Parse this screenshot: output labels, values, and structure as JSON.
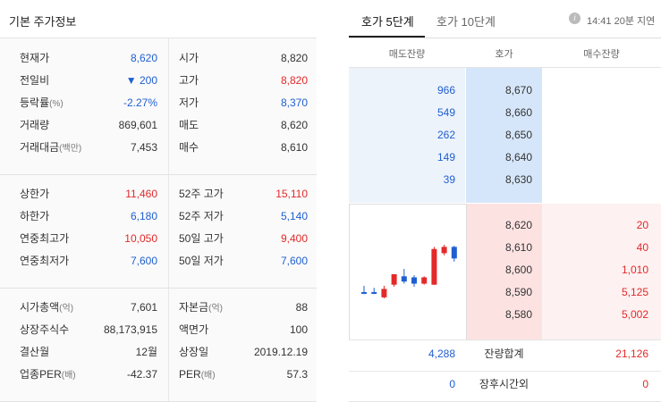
{
  "basic": {
    "title": "기본 주가정보",
    "sections": [
      [
        {
          "l1": "현재가",
          "u1": "",
          "v1": "8,620",
          "c1": "blue",
          "l2": "시가",
          "u2": "",
          "v2": "8,820",
          "c2": "dark"
        },
        {
          "l1": "전일비",
          "u1": "",
          "v1": "▼ 200",
          "c1": "blue",
          "l2": "고가",
          "u2": "",
          "v2": "8,820",
          "c2": "red"
        },
        {
          "l1": "등락률",
          "u1": "(%)",
          "v1": "-2.27%",
          "c1": "blue",
          "l2": "저가",
          "u2": "",
          "v2": "8,370",
          "c2": "blue"
        },
        {
          "l1": "거래량",
          "u1": "",
          "v1": "869,601",
          "c1": "dark",
          "l2": "매도",
          "u2": "",
          "v2": "8,620",
          "c2": "dark"
        },
        {
          "l1": "거래대금",
          "u1": "(백만)",
          "v1": "7,453",
          "c1": "dark",
          "l2": "매수",
          "u2": "",
          "v2": "8,610",
          "c2": "dark"
        }
      ],
      [
        {
          "l1": "상한가",
          "u1": "",
          "v1": "11,460",
          "c1": "red",
          "l2": "52주 고가",
          "u2": "",
          "v2": "15,110",
          "c2": "red"
        },
        {
          "l1": "하한가",
          "u1": "",
          "v1": "6,180",
          "c1": "blue",
          "l2": "52주 저가",
          "u2": "",
          "v2": "5,140",
          "c2": "blue"
        },
        {
          "l1": "연중최고가",
          "u1": "",
          "v1": "10,050",
          "c1": "red",
          "l2": "50일 고가",
          "u2": "",
          "v2": "9,400",
          "c2": "red"
        },
        {
          "l1": "연중최저가",
          "u1": "",
          "v1": "7,600",
          "c1": "blue",
          "l2": "50일 저가",
          "u2": "",
          "v2": "7,600",
          "c2": "blue"
        }
      ],
      [
        {
          "l1": "시가총액",
          "u1": "(억)",
          "v1": "7,601",
          "c1": "dark",
          "l2": "자본금",
          "u2": "(억)",
          "v2": "88",
          "c2": "dark"
        },
        {
          "l1": "상장주식수",
          "u1": "",
          "v1": "88,173,915",
          "c1": "dark",
          "l2": "액면가",
          "u2": "",
          "v2": "100",
          "c2": "dark"
        },
        {
          "l1": "결산월",
          "u1": "",
          "v1": "12월",
          "c1": "dark",
          "l2": "상장일",
          "u2": "",
          "v2": "2019.12.19",
          "c2": "dark"
        },
        {
          "l1": "업종PER",
          "u1": "(배)",
          "v1": "-42.37",
          "c1": "dark",
          "l2": "PER",
          "u2": "(배)",
          "v2": "57.3",
          "c2": "dark"
        }
      ]
    ]
  },
  "orderbook": {
    "tabs": [
      "호가 5단계",
      "호가 10단계"
    ],
    "info_icon": "i",
    "delay_text": "14:41 20분 지연",
    "headers": [
      "매도잔량",
      "호가",
      "매수잔량"
    ],
    "asks": [
      {
        "qty": "966",
        "price": "8,670"
      },
      {
        "qty": "549",
        "price": "8,660"
      },
      {
        "qty": "262",
        "price": "8,650"
      },
      {
        "qty": "149",
        "price": "8,640"
      },
      {
        "qty": "39",
        "price": "8,630"
      }
    ],
    "bids": [
      {
        "price": "8,620",
        "qty": "20"
      },
      {
        "price": "8,610",
        "qty": "40"
      },
      {
        "price": "8,600",
        "qty": "1,010"
      },
      {
        "price": "8,590",
        "qty": "5,125"
      },
      {
        "price": "8,580",
        "qty": "5,002"
      }
    ],
    "summary": [
      {
        "ask": "4,288",
        "label": "잔량합계",
        "bid": "21,126"
      },
      {
        "ask": "0",
        "label": "장후시간외",
        "bid": "0"
      }
    ]
  },
  "colors": {
    "up": "#e42929",
    "down": "#1f5fd1"
  },
  "mini_chart": {
    "candles": [
      {
        "o": 8330,
        "h": 8390,
        "l": 8310,
        "c": 8330,
        "dir": "down"
      },
      {
        "o": 8330,
        "h": 8370,
        "l": 8310,
        "c": 8330,
        "dir": "down"
      },
      {
        "o": 8280,
        "h": 8390,
        "l": 8270,
        "c": 8360,
        "dir": "up"
      },
      {
        "o": 8400,
        "h": 8500,
        "l": 8380,
        "c": 8500,
        "dir": "up"
      },
      {
        "o": 8480,
        "h": 8550,
        "l": 8410,
        "c": 8430,
        "dir": "down"
      },
      {
        "o": 8470,
        "h": 8490,
        "l": 8380,
        "c": 8410,
        "dir": "down"
      },
      {
        "o": 8410,
        "h": 8480,
        "l": 8400,
        "c": 8470,
        "dir": "up"
      },
      {
        "o": 8400,
        "h": 8760,
        "l": 8400,
        "c": 8740,
        "dir": "up"
      },
      {
        "o": 8700,
        "h": 8780,
        "l": 8680,
        "c": 8760,
        "dir": "up"
      },
      {
        "o": 8760,
        "h": 8770,
        "l": 8620,
        "c": 8650,
        "dir": "down"
      }
    ]
  }
}
